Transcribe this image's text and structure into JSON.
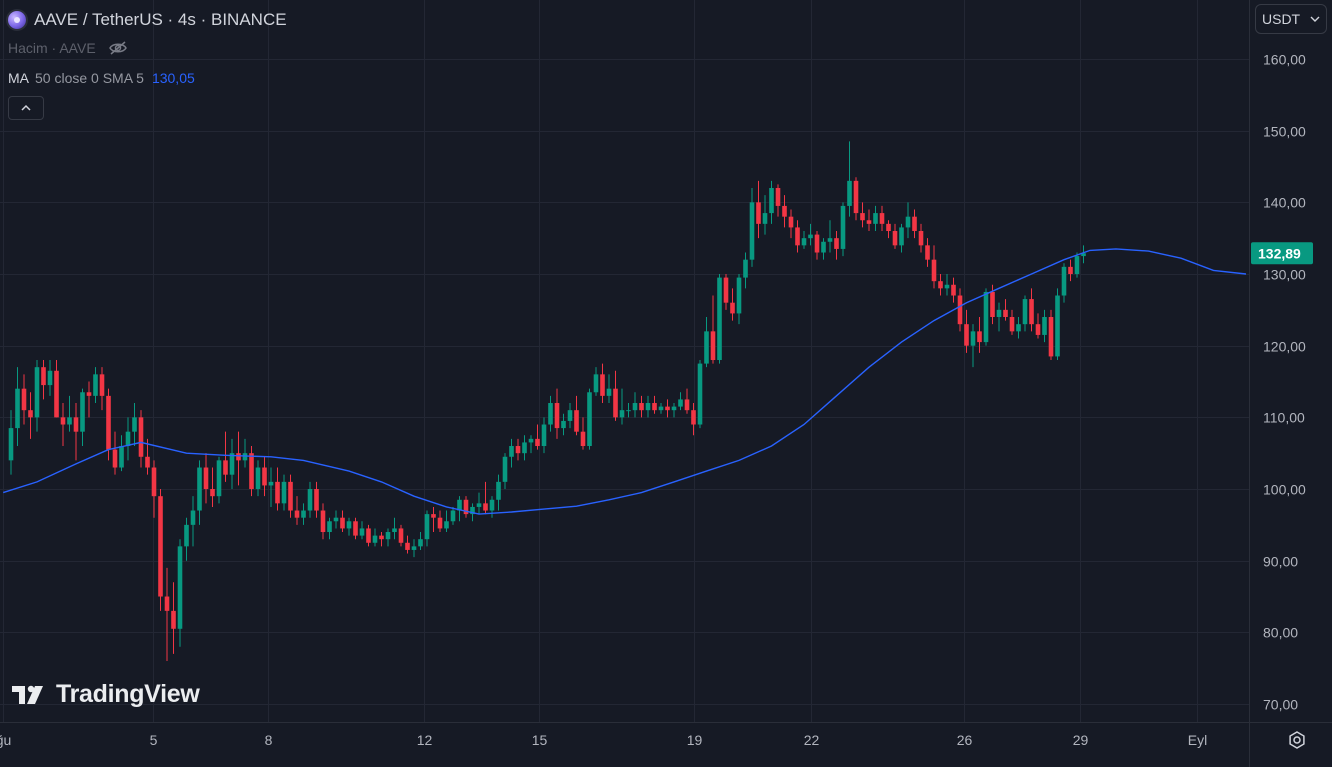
{
  "legend": {
    "title": "AAVE / TetherUS · 4s · BINANCE",
    "volume_label": "Hacim · AAVE",
    "ma_name": "MA",
    "ma_params": "50 close 0 SMA 5",
    "ma_value": "130,05"
  },
  "toolbar": {
    "currency": "USDT"
  },
  "brand": {
    "name": "TradingView"
  },
  "colors": {
    "background": "#161a25",
    "grid": "#232734",
    "up": "#089981",
    "down": "#f23645",
    "ma": "#2962ff",
    "axis_text": "#b2b5be"
  },
  "chart_data": {
    "type": "candlestick",
    "timeframe": "4h",
    "ylim": [
      67.5,
      164
    ],
    "y_ticks": [
      "70,00",
      "80,00",
      "90,00",
      "100,00",
      "110,00",
      "120,00",
      "130,00",
      "140,00",
      "150,00",
      "160,00"
    ],
    "x_ticks": [
      "ğu",
      "5",
      "8",
      "12",
      "15",
      "19",
      "22",
      "26",
      "29",
      "Eyl"
    ],
    "last_price": "132,89",
    "candles": [
      {
        "o": 104.0,
        "h": 111.0,
        "l": 102.0,
        "c": 108.5
      },
      {
        "o": 108.5,
        "h": 117.0,
        "l": 106.0,
        "c": 114.0
      },
      {
        "o": 114.0,
        "h": 116.0,
        "l": 109.0,
        "c": 111.0
      },
      {
        "o": 111.0,
        "h": 113.5,
        "l": 107.0,
        "c": 110.0
      },
      {
        "o": 110.0,
        "h": 118.0,
        "l": 108.0,
        "c": 117.0
      },
      {
        "o": 117.0,
        "h": 118.0,
        "l": 112.5,
        "c": 114.5
      },
      {
        "o": 114.5,
        "h": 118.0,
        "l": 113.0,
        "c": 116.5
      },
      {
        "o": 116.5,
        "h": 118.0,
        "l": 110.0,
        "c": 110.0
      },
      {
        "o": 110.0,
        "h": 112.0,
        "l": 106.0,
        "c": 109.0
      },
      {
        "o": 109.0,
        "h": 113.0,
        "l": 108.0,
        "c": 110.0
      },
      {
        "o": 110.0,
        "h": 112.0,
        "l": 104.0,
        "c": 108.0
      },
      {
        "o": 108.0,
        "h": 114.0,
        "l": 106.0,
        "c": 113.5
      },
      {
        "o": 113.5,
        "h": 115.0,
        "l": 110.0,
        "c": 113.0
      },
      {
        "o": 113.0,
        "h": 117.0,
        "l": 112.0,
        "c": 116.0
      },
      {
        "o": 116.0,
        "h": 117.0,
        "l": 111.0,
        "c": 113.0
      },
      {
        "o": 113.0,
        "h": 114.0,
        "l": 104.0,
        "c": 105.5
      },
      {
        "o": 105.5,
        "h": 108.0,
        "l": 102.0,
        "c": 103.0
      },
      {
        "o": 103.0,
        "h": 107.5,
        "l": 102.5,
        "c": 106.0
      },
      {
        "o": 106.0,
        "h": 110.0,
        "l": 104.0,
        "c": 108.0
      },
      {
        "o": 108.0,
        "h": 112.0,
        "l": 106.0,
        "c": 110.0
      },
      {
        "o": 110.0,
        "h": 111.0,
        "l": 103.0,
        "c": 104.5
      },
      {
        "o": 104.5,
        "h": 107.0,
        "l": 102.0,
        "c": 103.0
      },
      {
        "o": 103.0,
        "h": 104.0,
        "l": 96.0,
        "c": 99.0
      },
      {
        "o": 99.0,
        "h": 100.0,
        "l": 83.0,
        "c": 85.0
      },
      {
        "o": 85.0,
        "h": 89.0,
        "l": 76.0,
        "c": 83.0
      },
      {
        "o": 83.0,
        "h": 87.0,
        "l": 77.0,
        "c": 80.5
      },
      {
        "o": 80.5,
        "h": 93.0,
        "l": 78.0,
        "c": 92.0
      },
      {
        "o": 92.0,
        "h": 96.0,
        "l": 90.0,
        "c": 95.0
      },
      {
        "o": 95.0,
        "h": 99.0,
        "l": 92.0,
        "c": 97.0
      },
      {
        "o": 97.0,
        "h": 104.0,
        "l": 95.0,
        "c": 103.0
      },
      {
        "o": 103.0,
        "h": 105.0,
        "l": 98.0,
        "c": 100.0
      },
      {
        "o": 100.0,
        "h": 103.0,
        "l": 97.5,
        "c": 99.0
      },
      {
        "o": 99.0,
        "h": 104.5,
        "l": 98.0,
        "c": 104.0
      },
      {
        "o": 104.0,
        "h": 108.0,
        "l": 101.0,
        "c": 102.0
      },
      {
        "o": 102.0,
        "h": 107.0,
        "l": 100.0,
        "c": 105.0
      },
      {
        "o": 105.0,
        "h": 108.0,
        "l": 100.5,
        "c": 104.0
      },
      {
        "o": 104.0,
        "h": 107.0,
        "l": 103.0,
        "c": 105.0
      },
      {
        "o": 105.0,
        "h": 106.0,
        "l": 99.0,
        "c": 100.0
      },
      {
        "o": 100.0,
        "h": 104.0,
        "l": 99.0,
        "c": 103.0
      },
      {
        "o": 103.0,
        "h": 104.5,
        "l": 99.0,
        "c": 100.5
      },
      {
        "o": 100.5,
        "h": 103.0,
        "l": 97.5,
        "c": 101.0
      },
      {
        "o": 101.0,
        "h": 103.0,
        "l": 97.0,
        "c": 98.0
      },
      {
        "o": 98.0,
        "h": 102.0,
        "l": 97.0,
        "c": 101.0
      },
      {
        "o": 101.0,
        "h": 102.0,
        "l": 96.0,
        "c": 97.0
      },
      {
        "o": 97.0,
        "h": 99.0,
        "l": 95.0,
        "c": 96.0
      },
      {
        "o": 96.0,
        "h": 98.0,
        "l": 95.0,
        "c": 97.0
      },
      {
        "o": 97.0,
        "h": 101.0,
        "l": 96.0,
        "c": 100.0
      },
      {
        "o": 100.0,
        "h": 101.0,
        "l": 96.0,
        "c": 97.0
      },
      {
        "o": 97.0,
        "h": 98.0,
        "l": 93.0,
        "c": 94.0
      },
      {
        "o": 94.0,
        "h": 96.0,
        "l": 93.0,
        "c": 95.5
      },
      {
        "o": 95.5,
        "h": 97.0,
        "l": 94.5,
        "c": 96.0
      },
      {
        "o": 96.0,
        "h": 97.0,
        "l": 94.0,
        "c": 94.5
      },
      {
        "o": 94.5,
        "h": 96.0,
        "l": 93.5,
        "c": 95.5
      },
      {
        "o": 95.5,
        "h": 96.0,
        "l": 93.0,
        "c": 93.5
      },
      {
        "o": 93.5,
        "h": 95.5,
        "l": 93.0,
        "c": 94.5
      },
      {
        "o": 94.5,
        "h": 95.0,
        "l": 92.0,
        "c": 92.5
      },
      {
        "o": 92.5,
        "h": 94.5,
        "l": 92.0,
        "c": 93.5
      },
      {
        "o": 93.5,
        "h": 94.0,
        "l": 92.0,
        "c": 93.0
      },
      {
        "o": 93.0,
        "h": 94.5,
        "l": 92.0,
        "c": 94.0
      },
      {
        "o": 94.0,
        "h": 96.0,
        "l": 93.0,
        "c": 94.5
      },
      {
        "o": 94.5,
        "h": 95.0,
        "l": 92.0,
        "c": 92.5
      },
      {
        "o": 92.5,
        "h": 93.5,
        "l": 91.0,
        "c": 91.5
      },
      {
        "o": 91.5,
        "h": 93.0,
        "l": 90.5,
        "c": 92.0
      },
      {
        "o": 92.0,
        "h": 94.0,
        "l": 91.5,
        "c": 93.0
      },
      {
        "o": 93.0,
        "h": 97.0,
        "l": 92.0,
        "c": 96.5
      },
      {
        "o": 96.5,
        "h": 97.5,
        "l": 94.0,
        "c": 96.0
      },
      {
        "o": 96.0,
        "h": 97.0,
        "l": 94.0,
        "c": 94.5
      },
      {
        "o": 94.5,
        "h": 97.0,
        "l": 94.0,
        "c": 95.5
      },
      {
        "o": 95.5,
        "h": 97.5,
        "l": 95.0,
        "c": 97.0
      },
      {
        "o": 97.0,
        "h": 99.0,
        "l": 95.5,
        "c": 98.5
      },
      {
        "o": 98.5,
        "h": 99.0,
        "l": 96.0,
        "c": 96.5
      },
      {
        "o": 96.5,
        "h": 98.0,
        "l": 95.5,
        "c": 97.5
      },
      {
        "o": 97.5,
        "h": 99.5,
        "l": 96.5,
        "c": 98.0
      },
      {
        "o": 98.0,
        "h": 101.0,
        "l": 96.5,
        "c": 97.0
      },
      {
        "o": 97.0,
        "h": 99.0,
        "l": 96.0,
        "c": 98.5
      },
      {
        "o": 98.5,
        "h": 102.0,
        "l": 97.0,
        "c": 101.0
      },
      {
        "o": 101.0,
        "h": 105.0,
        "l": 100.0,
        "c": 104.5
      },
      {
        "o": 104.5,
        "h": 107.0,
        "l": 103.0,
        "c": 106.0
      },
      {
        "o": 106.0,
        "h": 107.0,
        "l": 104.0,
        "c": 105.0
      },
      {
        "o": 105.0,
        "h": 107.5,
        "l": 104.0,
        "c": 106.5
      },
      {
        "o": 106.5,
        "h": 107.5,
        "l": 105.0,
        "c": 107.0
      },
      {
        "o": 107.0,
        "h": 109.0,
        "l": 105.5,
        "c": 106.0
      },
      {
        "o": 106.0,
        "h": 110.0,
        "l": 105.0,
        "c": 109.0
      },
      {
        "o": 109.0,
        "h": 113.0,
        "l": 108.0,
        "c": 112.0
      },
      {
        "o": 112.0,
        "h": 114.0,
        "l": 107.0,
        "c": 108.5
      },
      {
        "o": 108.5,
        "h": 110.5,
        "l": 107.5,
        "c": 109.5
      },
      {
        "o": 109.5,
        "h": 112.0,
        "l": 108.5,
        "c": 111.0
      },
      {
        "o": 111.0,
        "h": 113.0,
        "l": 107.5,
        "c": 108.0
      },
      {
        "o": 108.0,
        "h": 110.0,
        "l": 105.5,
        "c": 106.0
      },
      {
        "o": 106.0,
        "h": 114.0,
        "l": 105.5,
        "c": 113.5
      },
      {
        "o": 113.5,
        "h": 117.0,
        "l": 113.0,
        "c": 116.0
      },
      {
        "o": 116.0,
        "h": 117.5,
        "l": 112.0,
        "c": 113.0
      },
      {
        "o": 113.0,
        "h": 116.0,
        "l": 112.0,
        "c": 114.0
      },
      {
        "o": 114.0,
        "h": 116.5,
        "l": 109.5,
        "c": 110.0
      },
      {
        "o": 110.0,
        "h": 114.0,
        "l": 109.0,
        "c": 111.0
      },
      {
        "o": 111.0,
        "h": 112.0,
        "l": 110.0,
        "c": 111.0
      },
      {
        "o": 111.0,
        "h": 113.5,
        "l": 110.0,
        "c": 112.0
      },
      {
        "o": 112.0,
        "h": 113.0,
        "l": 110.0,
        "c": 111.0
      },
      {
        "o": 111.0,
        "h": 113.0,
        "l": 110.0,
        "c": 112.0
      },
      {
        "o": 112.0,
        "h": 113.0,
        "l": 110.5,
        "c": 111.0
      },
      {
        "o": 111.0,
        "h": 112.0,
        "l": 110.5,
        "c": 111.5
      },
      {
        "o": 111.5,
        "h": 112.5,
        "l": 110.0,
        "c": 111.0
      },
      {
        "o": 111.0,
        "h": 112.0,
        "l": 110.0,
        "c": 111.5
      },
      {
        "o": 111.5,
        "h": 113.5,
        "l": 111.0,
        "c": 112.5
      },
      {
        "o": 112.5,
        "h": 114.0,
        "l": 110.5,
        "c": 111.0
      },
      {
        "o": 111.0,
        "h": 112.0,
        "l": 107.5,
        "c": 109.0
      },
      {
        "o": 109.0,
        "h": 118.0,
        "l": 108.5,
        "c": 117.5
      },
      {
        "o": 117.5,
        "h": 124.0,
        "l": 117.0,
        "c": 122.0
      },
      {
        "o": 122.0,
        "h": 127.0,
        "l": 117.5,
        "c": 118.0
      },
      {
        "o": 118.0,
        "h": 130.0,
        "l": 117.5,
        "c": 129.5
      },
      {
        "o": 129.5,
        "h": 130.0,
        "l": 125.0,
        "c": 126.0
      },
      {
        "o": 126.0,
        "h": 128.0,
        "l": 123.5,
        "c": 124.5
      },
      {
        "o": 124.5,
        "h": 130.0,
        "l": 123.0,
        "c": 129.5
      },
      {
        "o": 129.5,
        "h": 133.0,
        "l": 128.0,
        "c": 132.0
      },
      {
        "o": 132.0,
        "h": 142.0,
        "l": 131.0,
        "c": 140.0
      },
      {
        "o": 140.0,
        "h": 143.0,
        "l": 135.0,
        "c": 137.0
      },
      {
        "o": 137.0,
        "h": 141.0,
        "l": 135.5,
        "c": 138.5
      },
      {
        "o": 138.5,
        "h": 143.0,
        "l": 137.0,
        "c": 142.0
      },
      {
        "o": 142.0,
        "h": 142.5,
        "l": 138.0,
        "c": 139.5
      },
      {
        "o": 139.5,
        "h": 141.0,
        "l": 136.5,
        "c": 138.0
      },
      {
        "o": 138.0,
        "h": 139.0,
        "l": 135.0,
        "c": 136.5
      },
      {
        "o": 136.5,
        "h": 137.5,
        "l": 133.0,
        "c": 134.0
      },
      {
        "o": 134.0,
        "h": 136.0,
        "l": 133.5,
        "c": 135.0
      },
      {
        "o": 135.0,
        "h": 137.0,
        "l": 134.0,
        "c": 135.5
      },
      {
        "o": 135.5,
        "h": 136.0,
        "l": 132.0,
        "c": 133.0
      },
      {
        "o": 133.0,
        "h": 135.0,
        "l": 132.0,
        "c": 134.5
      },
      {
        "o": 134.5,
        "h": 137.5,
        "l": 133.0,
        "c": 135.0
      },
      {
        "o": 135.0,
        "h": 136.0,
        "l": 132.0,
        "c": 133.5
      },
      {
        "o": 133.5,
        "h": 140.0,
        "l": 132.5,
        "c": 139.5
      },
      {
        "o": 139.5,
        "h": 148.5,
        "l": 138.0,
        "c": 143.0
      },
      {
        "o": 143.0,
        "h": 143.5,
        "l": 137.5,
        "c": 138.5
      },
      {
        "o": 138.5,
        "h": 140.0,
        "l": 136.5,
        "c": 137.5
      },
      {
        "o": 137.5,
        "h": 139.0,
        "l": 136.0,
        "c": 137.0
      },
      {
        "o": 137.0,
        "h": 139.5,
        "l": 136.0,
        "c": 138.5
      },
      {
        "o": 138.5,
        "h": 139.5,
        "l": 136.0,
        "c": 137.0
      },
      {
        "o": 137.0,
        "h": 137.5,
        "l": 135.0,
        "c": 136.0
      },
      {
        "o": 136.0,
        "h": 137.0,
        "l": 133.5,
        "c": 134.0
      },
      {
        "o": 134.0,
        "h": 137.0,
        "l": 133.0,
        "c": 136.5
      },
      {
        "o": 136.5,
        "h": 140.0,
        "l": 135.0,
        "c": 138.0
      },
      {
        "o": 138.0,
        "h": 139.0,
        "l": 135.0,
        "c": 136.0
      },
      {
        "o": 136.0,
        "h": 137.0,
        "l": 133.0,
        "c": 134.0
      },
      {
        "o": 134.0,
        "h": 135.0,
        "l": 131.0,
        "c": 132.0
      },
      {
        "o": 132.0,
        "h": 134.0,
        "l": 128.0,
        "c": 129.0
      },
      {
        "o": 129.0,
        "h": 130.0,
        "l": 127.0,
        "c": 128.0
      },
      {
        "o": 128.0,
        "h": 130.0,
        "l": 127.0,
        "c": 128.5
      },
      {
        "o": 128.5,
        "h": 129.5,
        "l": 126.0,
        "c": 127.0
      },
      {
        "o": 127.0,
        "h": 128.0,
        "l": 122.0,
        "c": 123.0
      },
      {
        "o": 123.0,
        "h": 125.0,
        "l": 119.0,
        "c": 120.0
      },
      {
        "o": 120.0,
        "h": 123.0,
        "l": 117.0,
        "c": 122.0
      },
      {
        "o": 122.0,
        "h": 124.0,
        "l": 119.0,
        "c": 120.5
      },
      {
        "o": 120.5,
        "h": 128.0,
        "l": 120.0,
        "c": 127.5
      },
      {
        "o": 127.5,
        "h": 128.5,
        "l": 123.0,
        "c": 124.0
      },
      {
        "o": 124.0,
        "h": 126.0,
        "l": 122.0,
        "c": 125.0
      },
      {
        "o": 125.0,
        "h": 126.5,
        "l": 123.5,
        "c": 124.0
      },
      {
        "o": 124.0,
        "h": 125.0,
        "l": 121.5,
        "c": 122.0
      },
      {
        "o": 122.0,
        "h": 124.0,
        "l": 121.0,
        "c": 123.0
      },
      {
        "o": 123.0,
        "h": 127.0,
        "l": 122.0,
        "c": 126.5
      },
      {
        "o": 126.5,
        "h": 128.0,
        "l": 122.0,
        "c": 123.0
      },
      {
        "o": 123.0,
        "h": 124.5,
        "l": 121.0,
        "c": 121.5
      },
      {
        "o": 121.5,
        "h": 125.0,
        "l": 120.5,
        "c": 124.0
      },
      {
        "o": 124.0,
        "h": 125.0,
        "l": 118.0,
        "c": 118.5
      },
      {
        "o": 118.5,
        "h": 128.0,
        "l": 118.0,
        "c": 127.0
      },
      {
        "o": 127.0,
        "h": 131.5,
        "l": 126.0,
        "c": 131.0
      },
      {
        "o": 131.0,
        "h": 132.0,
        "l": 129.0,
        "c": 130.0
      },
      {
        "o": 130.0,
        "h": 133.0,
        "l": 129.5,
        "c": 132.5
      },
      {
        "o": 132.5,
        "h": 134.0,
        "l": 131.5,
        "c": 132.9
      }
    ],
    "ma": {
      "name": "MA 50",
      "points": [
        [
          -1.2,
          99.5
        ],
        [
          4.0,
          101.0
        ],
        [
          10.0,
          103.5
        ],
        [
          15.0,
          105.5
        ],
        [
          20.0,
          106.5
        ],
        [
          27.0,
          105.0
        ],
        [
          33.0,
          104.7
        ],
        [
          40.0,
          104.5
        ],
        [
          45.0,
          104.0
        ],
        [
          52.0,
          102.5
        ],
        [
          57.0,
          101.0
        ],
        [
          62.0,
          99.0
        ],
        [
          67.0,
          97.5
        ],
        [
          72.0,
          96.5
        ],
        [
          77.0,
          96.8
        ],
        [
          82.0,
          97.2
        ],
        [
          87.0,
          97.6
        ],
        [
          92.0,
          98.5
        ],
        [
          97.0,
          99.5
        ],
        [
          102.0,
          101.0
        ],
        [
          107.0,
          102.5
        ],
        [
          112.0,
          104.0
        ],
        [
          117.0,
          106.0
        ],
        [
          122.0,
          109.0
        ],
        [
          127.0,
          113.0
        ],
        [
          132.0,
          117.0
        ],
        [
          137.0,
          120.5
        ],
        [
          142.0,
          123.5
        ],
        [
          147.0,
          126.0
        ],
        [
          152.0,
          128.0
        ],
        [
          157.0,
          130.0
        ],
        [
          162.0,
          132.0
        ],
        [
          166.0,
          133.3
        ],
        [
          170.0,
          133.5
        ],
        [
          175.0,
          133.2
        ],
        [
          180.0,
          132.2
        ],
        [
          185.0,
          130.5
        ],
        [
          190.0,
          130.0
        ]
      ]
    }
  }
}
